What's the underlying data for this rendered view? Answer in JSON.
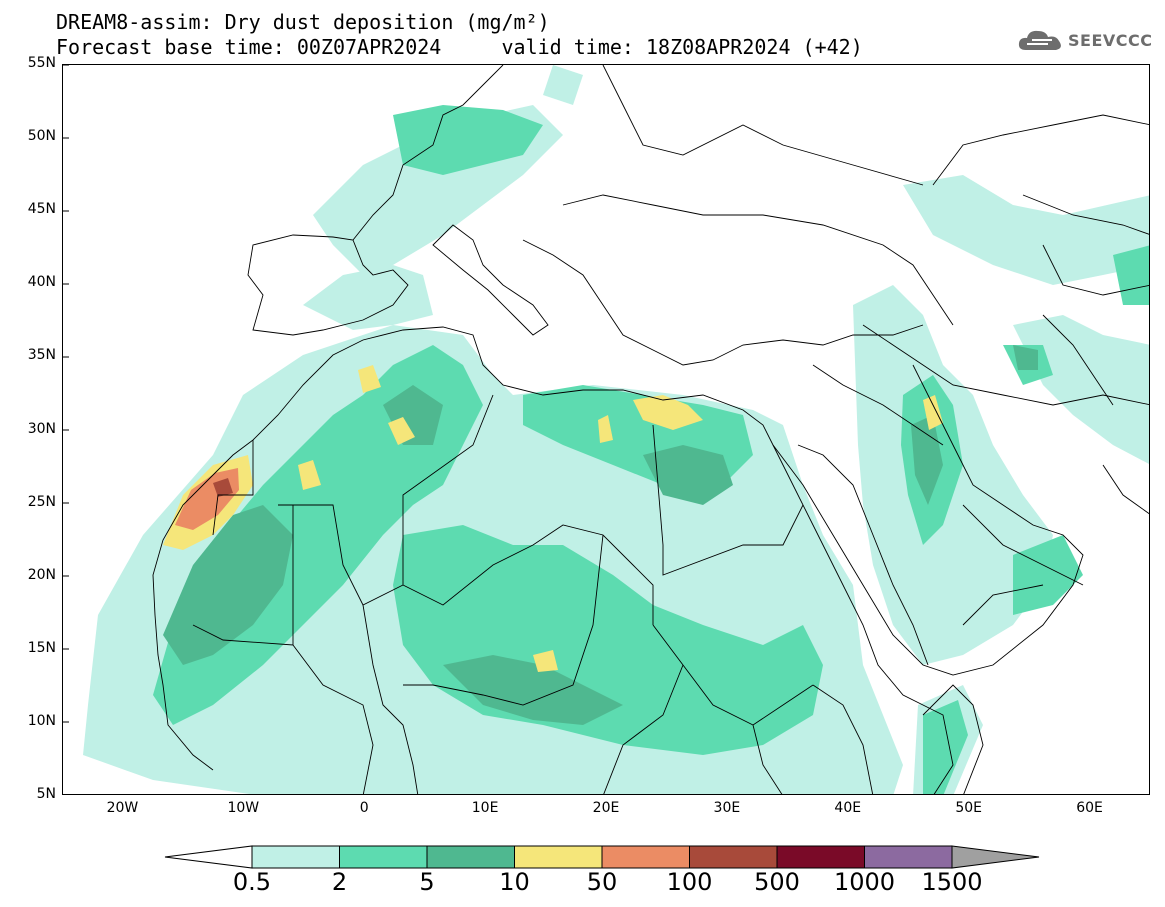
{
  "title": {
    "line1": "DREAM8-assim: Dry dust deposition (mg/m²)",
    "line2": "Forecast base time: 00Z07APR2024     valid time: 18Z08APR2024 (+42)"
  },
  "logo": {
    "text": "SEEVCCC",
    "icon": "cloud-icon",
    "color": "#6d6d6d"
  },
  "map": {
    "lon_range": [
      -25,
      65
    ],
    "lat_range": [
      5,
      55
    ],
    "lat_ticks": [
      {
        "value": 55,
        "label": "55N"
      },
      {
        "value": 50,
        "label": "50N"
      },
      {
        "value": 45,
        "label": "45N"
      },
      {
        "value": 40,
        "label": "40N"
      },
      {
        "value": 35,
        "label": "35N"
      },
      {
        "value": 30,
        "label": "30N"
      },
      {
        "value": 25,
        "label": "25N"
      },
      {
        "value": 20,
        "label": "20N"
      },
      {
        "value": 15,
        "label": "15N"
      },
      {
        "value": 10,
        "label": "10N"
      },
      {
        "value": 5,
        "label": "5N"
      }
    ],
    "lon_ticks": [
      {
        "value": -20,
        "label": "20W"
      },
      {
        "value": -10,
        "label": "10W"
      },
      {
        "value": 0,
        "label": "0"
      },
      {
        "value": 10,
        "label": "10E"
      },
      {
        "value": 20,
        "label": "20E"
      },
      {
        "value": 30,
        "label": "30E"
      },
      {
        "value": 40,
        "label": "40E"
      },
      {
        "value": 50,
        "label": "50E"
      },
      {
        "value": 60,
        "label": "60E"
      }
    ]
  },
  "colorbar": {
    "levels": [
      "0.5",
      "2",
      "5",
      "10",
      "50",
      "100",
      "500",
      "1000",
      "1500"
    ],
    "colors": [
      "#c0f0e6",
      "#5ddbb0",
      "#4fb890",
      "#f5e67a",
      "#eb8c64",
      "#a84a3a",
      "#7a0a28",
      "#8c6aa0",
      "#a0a0a0"
    ]
  }
}
